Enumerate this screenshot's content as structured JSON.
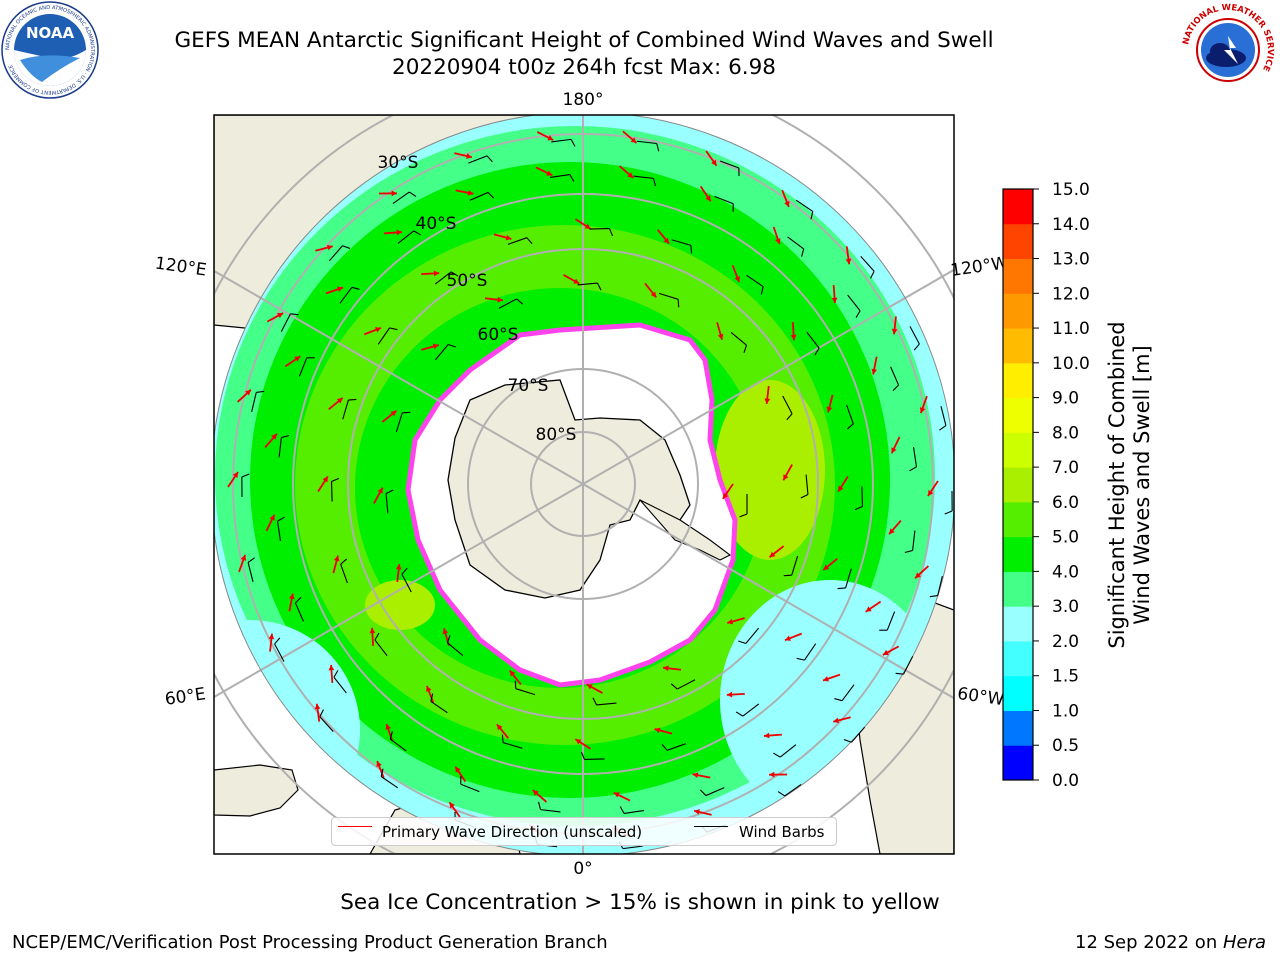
{
  "header": {
    "title_line1": "GEFS MEAN Antarctic Significant Height of Combined Wind Waves and Swell",
    "title_line2": "20220904 t00z 264h fcst   Max: 6.98"
  },
  "logos": {
    "left": "NOAA",
    "left_ring": "NATIONAL OCEANIC AND ATMOSPHERIC ADMINISTRATION · U.S. DEPARTMENT OF COMMERCE",
    "right_ring": "NATIONAL WEATHER SERVICE"
  },
  "map": {
    "projection": "south-polar-stereographic",
    "longitude_labels": {
      "top": "180°",
      "upper_left": "120°E",
      "upper_right": "120°W",
      "lower_left": "60°E",
      "lower_right": "60°W",
      "bottom": "0°"
    },
    "latitude_labels": [
      "30°S",
      "40°S",
      "50°S",
      "60°S",
      "70°S",
      "80°S"
    ],
    "colors": {
      "land": "#eeecdc",
      "sea_ice_edge": "#ff44ee",
      "wave_arrow": "#ee0000",
      "grid": "#b0b0b0"
    }
  },
  "legend": {
    "wave_direction_label": "Primary Wave Direction (unscaled)",
    "wind_barbs_label": "Wind Barbs",
    "wave_direction_color": "#ff0000",
    "wind_barbs_color": "#000000"
  },
  "colorbar": {
    "label_line1": "Significant Height of Combined",
    "label_line2": "Wind Waves and Swell [m]",
    "ticks": [
      "0.0",
      "0.5",
      "1.0",
      "1.5",
      "2.0",
      "3.0",
      "4.0",
      "5.0",
      "6.0",
      "7.0",
      "8.0",
      "9.0",
      "10.0",
      "11.0",
      "12.0",
      "13.0",
      "14.0",
      "15.0"
    ],
    "colors": [
      "#0000ff",
      "#0077ff",
      "#00ffff",
      "#44ffff",
      "#99ffff",
      "#44ff88",
      "#00ee00",
      "#55ee00",
      "#aaee00",
      "#ccff00",
      "#eeff00",
      "#ffee00",
      "#ffbb00",
      "#ff9900",
      "#ff7700",
      "#ff4400",
      "#ff0000"
    ]
  },
  "bottom_note": "Sea Ice Concentration > 15% is shown in pink to yellow",
  "footer": {
    "left": "NCEP/EMC/Verification Post Processing Product Generation Branch",
    "right_prefix": "12 Sep 2022 on ",
    "right_host": "Hera"
  }
}
